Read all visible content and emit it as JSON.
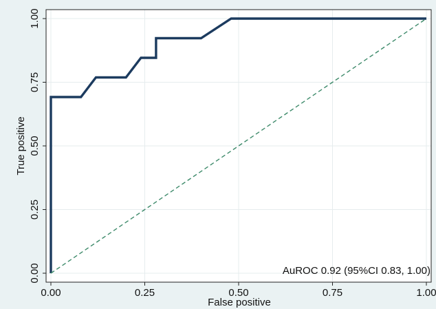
{
  "chart_data": {
    "type": "line",
    "title": "",
    "xlabel": "False positive",
    "ylabel": "True positive",
    "xlim": [
      0,
      1
    ],
    "ylim": [
      0,
      1
    ],
    "xticks": [
      "0.00",
      "0.25",
      "0.50",
      "0.75",
      "1.00"
    ],
    "yticks": [
      "0.00",
      "0.25",
      "0.50",
      "0.75",
      "1.00"
    ],
    "grid": true,
    "series": [
      {
        "style": "solid",
        "color": "#1c3b5f",
        "x": [
          0,
          0,
          0.08,
          0.12,
          0.2,
          0.24,
          0.28,
          0.28,
          0.4,
          0.48,
          1.0
        ],
        "y": [
          0,
          0.692,
          0.692,
          0.769,
          0.769,
          0.846,
          0.846,
          0.923,
          0.923,
          1.0,
          1.0
        ]
      },
      {
        "style": "dashed",
        "color": "#3d8a6a",
        "x": [
          0,
          1
        ],
        "y": [
          0,
          1
        ]
      }
    ],
    "annotation": "AuROC 0.92 (95%CI 0.83, 1.00)"
  }
}
